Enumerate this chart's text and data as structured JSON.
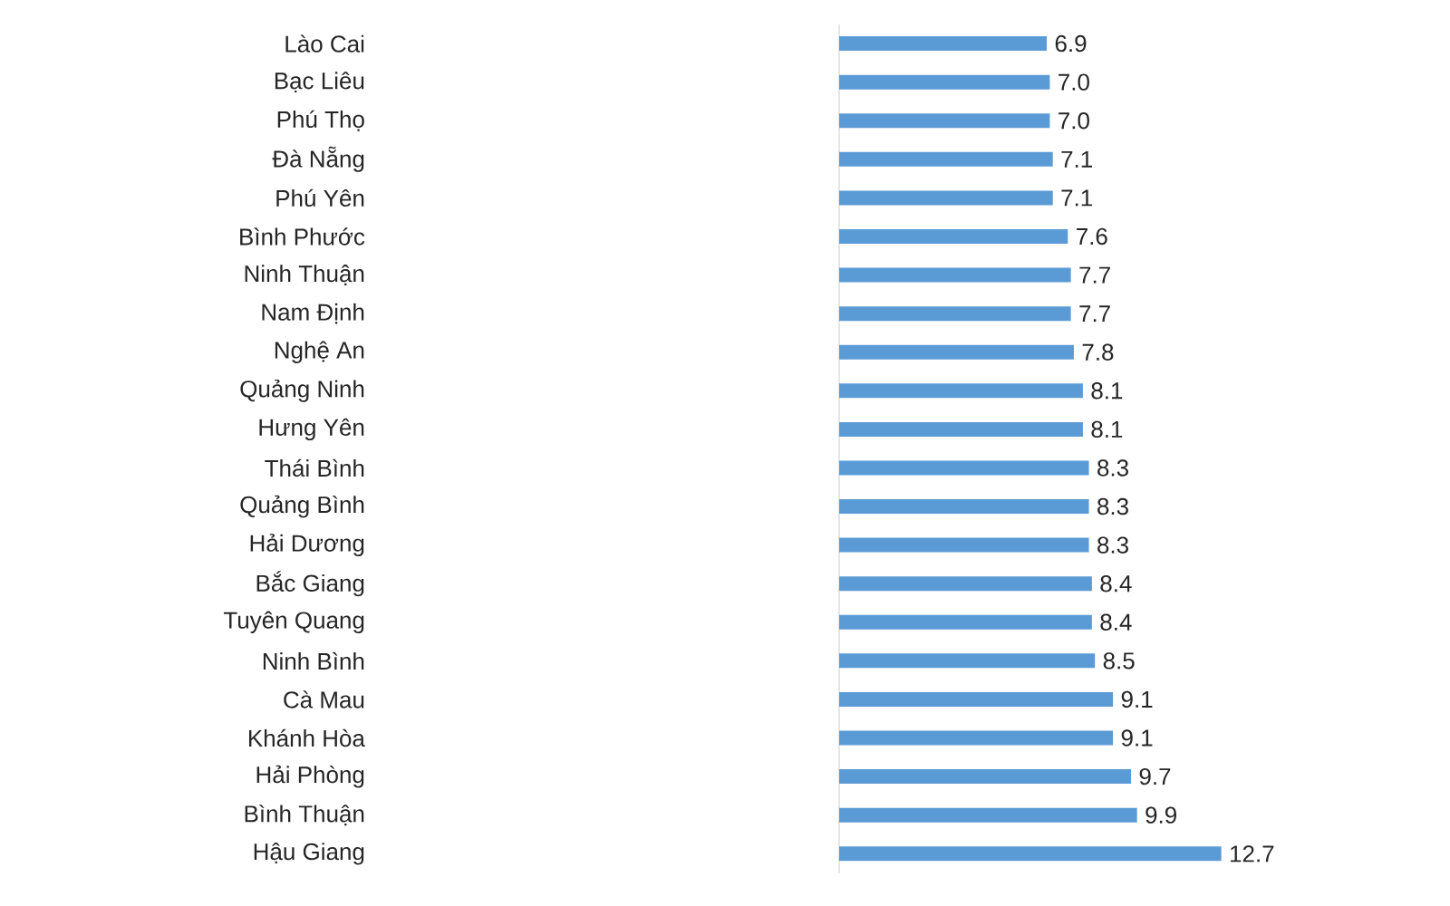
{
  "chart_data": {
    "type": "bar",
    "orientation": "horizontal",
    "value_labels": [
      "6.9",
      "7.0",
      "7.0",
      "7.1",
      "7.1",
      "7.6",
      "7.7",
      "7.7",
      "7.8",
      "8.1",
      "8.1",
      "8.3",
      "8.3",
      "8.3",
      "8.4",
      "8.4",
      "8.5",
      "9.1",
      "9.1",
      "9.7",
      "9.9",
      "12.7"
    ],
    "color": "#5b9bd5",
    "categories": [
      "Lào Cai",
      "Bạc Liêu",
      "Phú Thọ",
      "Đà Nẵng",
      "Phú Yên",
      "Bình Phước",
      "Ninh Thuận",
      "Nam Định",
      "Nghệ An",
      "Quảng Ninh",
      "Hưng Yên",
      "Thái Bình",
      "Quảng Bình",
      "Hải Dương",
      "Bắc Giang",
      "Tuyên Quang",
      "Ninh Bình",
      "Cà Mau",
      "Khánh Hòa",
      "Hải Phòng",
      "Bình Thuận",
      "Hậu Giang"
    ],
    "values": [
      6.9,
      7.0,
      7.0,
      7.1,
      7.1,
      7.6,
      7.7,
      7.7,
      7.8,
      8.1,
      8.1,
      8.3,
      8.3,
      8.3,
      8.4,
      8.4,
      8.5,
      9.1,
      9.1,
      9.7,
      9.9,
      12.7
    ]
  }
}
